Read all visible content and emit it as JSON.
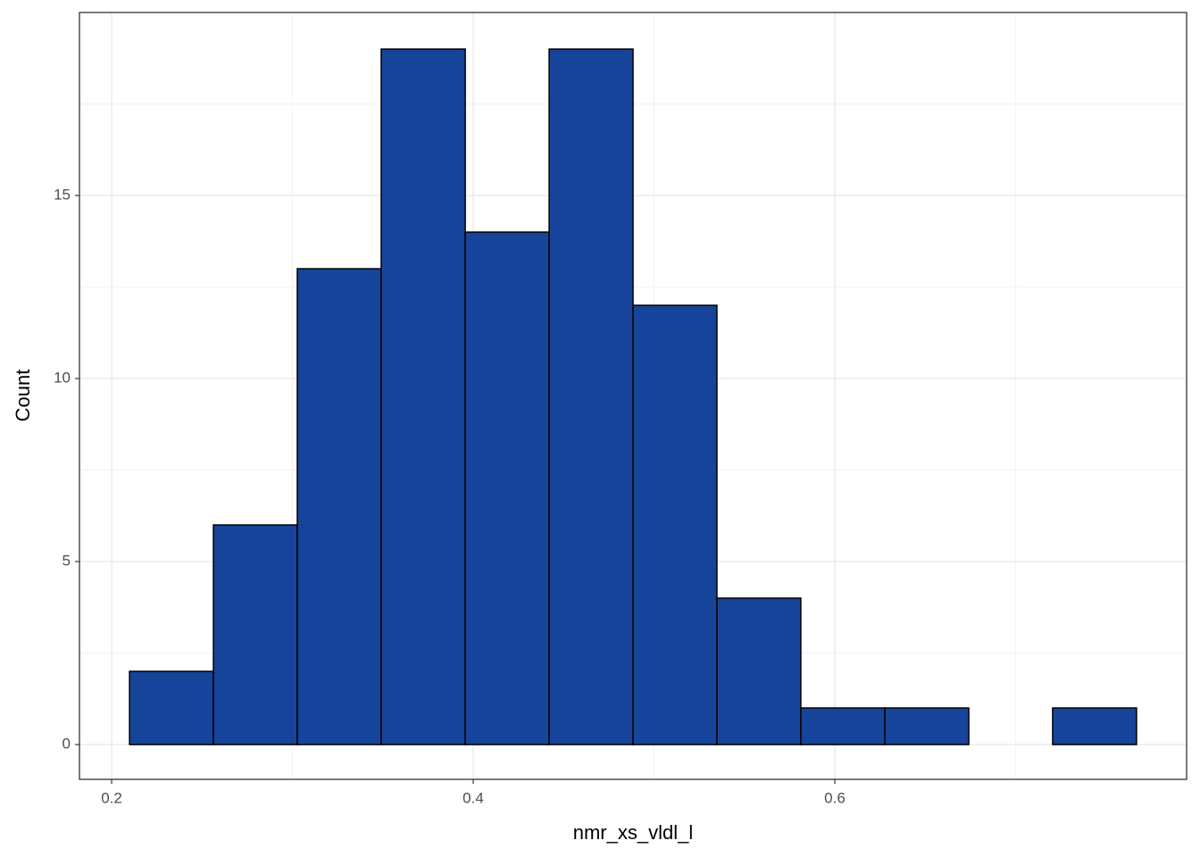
{
  "chart_data": {
    "type": "histogram",
    "xlabel": "nmr_xs_vldl_l",
    "ylabel": "Count",
    "bins": [
      0.2099,
      0.2563,
      0.3027,
      0.3491,
      0.3956,
      0.442,
      0.4884,
      0.5348,
      0.5812,
      0.6277,
      0.6741,
      0.7205,
      0.7669
    ],
    "values": [
      2,
      6,
      13,
      19,
      14,
      19,
      12,
      4,
      1,
      1,
      0,
      1
    ],
    "color": "#17449b",
    "edgecolor": "#000000",
    "xlim": [
      0.1822,
      0.7946
    ],
    "xticks": [
      0.2,
      0.4,
      0.6
    ],
    "ylim": [
      -0.95,
      20
    ],
    "yticks": [
      0,
      5,
      10,
      15
    ],
    "grid": true
  }
}
